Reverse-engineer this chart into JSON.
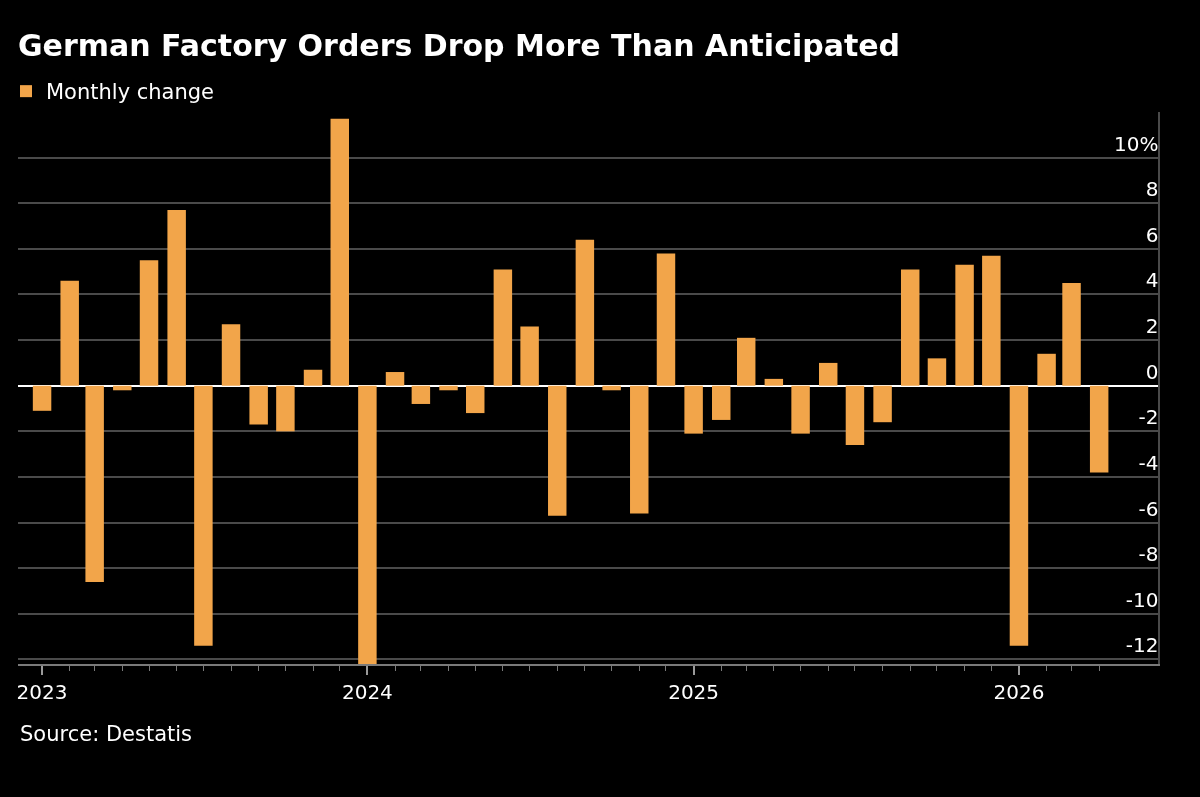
{
  "chart_data": {
    "type": "bar",
    "title": "German Factory Orders Drop More Than Anticipated",
    "x": [
      "2023-01",
      "2023-02",
      "2023-03",
      "2023-04",
      "2023-05",
      "2023-06",
      "2023-07",
      "2023-08",
      "2023-09",
      "2023-10",
      "2023-11",
      "2023-12",
      "2024-01",
      "2024-02",
      "2024-03",
      "2024-04",
      "2024-05",
      "2024-06",
      "2024-07",
      "2024-08",
      "2024-09",
      "2024-10",
      "2024-11",
      "2024-12",
      "2025-01",
      "2025-02",
      "2025-03",
      "2025-04",
      "2025-05",
      "2025-06",
      "2025-07",
      "2025-08",
      "2025-09",
      "2025-10",
      "2025-11",
      "2025-12",
      "2026-01",
      "2026-02",
      "2026-03",
      "2026-04"
    ],
    "series": [
      {
        "name": "Monthly change",
        "color": "#f2a54a",
        "values": [
          -1.1,
          4.6,
          -8.6,
          -0.2,
          5.5,
          7.7,
          -11.4,
          2.7,
          -1.7,
          -2.0,
          0.7,
          11.7,
          -12.2,
          0.6,
          -0.8,
          -0.2,
          -1.2,
          5.1,
          2.6,
          -5.7,
          6.4,
          -0.2,
          -5.6,
          5.8,
          -2.1,
          -1.5,
          2.1,
          0.3,
          -2.1,
          1.0,
          -2.6,
          -1.6,
          5.1,
          1.2,
          5.3,
          5.7,
          -11.4,
          1.4,
          4.5,
          -3.8
        ]
      }
    ],
    "xlim": [
      "2022-12-05",
      "2026-06-06"
    ],
    "xticks": [
      {
        "value": "2023-01",
        "label": "2023"
      },
      {
        "value": "2023-02",
        "label": null
      },
      {
        "value": "2023-03",
        "label": null
      },
      {
        "value": "2023-04",
        "label": null
      },
      {
        "value": "2023-05",
        "label": null
      },
      {
        "value": "2023-06",
        "label": null
      },
      {
        "value": "2023-07",
        "label": null
      },
      {
        "value": "2023-08",
        "label": null
      },
      {
        "value": "2023-09",
        "label": null
      },
      {
        "value": "2023-10",
        "label": null
      },
      {
        "value": "2023-11",
        "label": null
      },
      {
        "value": "2023-12",
        "label": null
      },
      {
        "value": "2024-01",
        "label": "2024"
      },
      {
        "value": "2024-02",
        "label": null
      },
      {
        "value": "2024-03",
        "label": null
      },
      {
        "value": "2024-04",
        "label": null
      },
      {
        "value": "2024-05",
        "label": null
      },
      {
        "value": "2024-06",
        "label": null
      },
      {
        "value": "2024-07",
        "label": null
      },
      {
        "value": "2024-08",
        "label": null
      },
      {
        "value": "2024-09",
        "label": null
      },
      {
        "value": "2024-10",
        "label": null
      },
      {
        "value": "2024-11",
        "label": null
      },
      {
        "value": "2024-12",
        "label": null
      },
      {
        "value": "2025-01",
        "label": "2025"
      },
      {
        "value": "2025-02",
        "label": null
      },
      {
        "value": "2025-03",
        "label": null
      },
      {
        "value": "2025-04",
        "label": null
      },
      {
        "value": "2025-05",
        "label": null
      },
      {
        "value": "2025-06",
        "label": null
      },
      {
        "value": "2025-07",
        "label": null
      },
      {
        "value": "2025-08",
        "label": null
      },
      {
        "value": "2025-09",
        "label": null
      },
      {
        "value": "2025-10",
        "label": null
      },
      {
        "value": "2025-11",
        "label": null
      },
      {
        "value": "2025-12",
        "label": null
      },
      {
        "value": "2026-01",
        "label": "2026"
      },
      {
        "value": "2026-02",
        "label": null
      },
      {
        "value": "2026-03",
        "label": null
      },
      {
        "value": "2026-04",
        "label": null
      }
    ],
    "ylim": [
      -12.2,
      12
    ],
    "yticks": [
      {
        "value": 10,
        "label": "10%"
      },
      8,
      6,
      4,
      2,
      0,
      -2,
      -4,
      -6,
      -8,
      -10,
      -12
    ],
    "grid": "y",
    "legend": "top left",
    "annotations": [
      "Source: Destatis"
    ]
  }
}
